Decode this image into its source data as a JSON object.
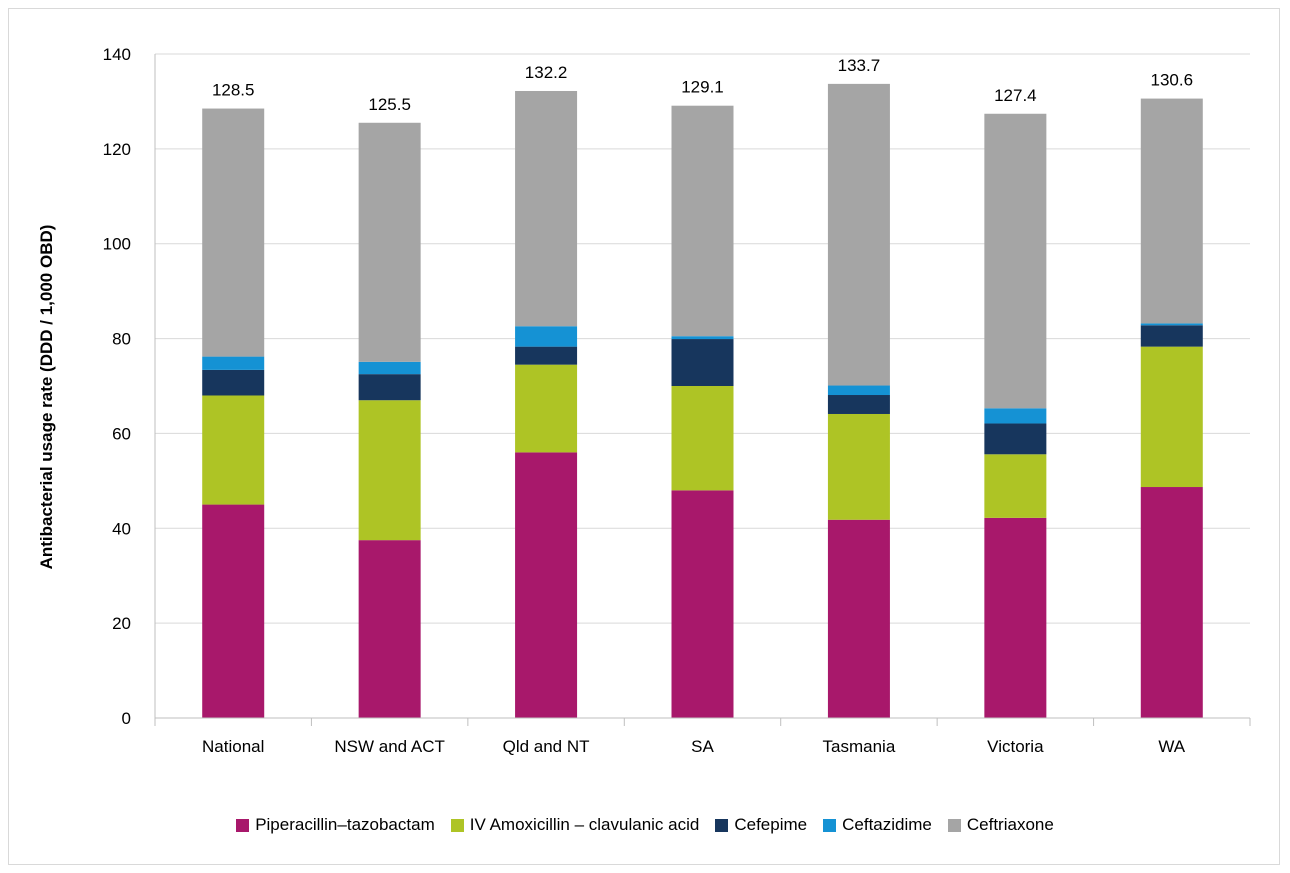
{
  "chart_data": {
    "type": "bar",
    "stacked": true,
    "ylabel": "Antibacterial usage rate (DDD / 1,000 OBD)",
    "xlabel": "",
    "ylim": [
      0,
      140
    ],
    "yticks": [
      0,
      20,
      40,
      60,
      80,
      100,
      120,
      140
    ],
    "grid": true,
    "legend_position": "bottom",
    "categories": [
      "National",
      "NSW and ACT",
      "Qld and NT",
      "SA",
      "Tasmania",
      "Victoria",
      "WA"
    ],
    "totals": [
      "128.5",
      "125.5",
      "132.2",
      "129.1",
      "133.7",
      "127.4",
      "130.6"
    ],
    "series": [
      {
        "name": "Piperacillin–tazobactam",
        "color": "#a8186b",
        "values": [
          45.0,
          37.5,
          56.0,
          48.0,
          41.8,
          42.2,
          48.7
        ]
      },
      {
        "name": "IV Amoxicillin – clavulanic acid",
        "color": "#aec425",
        "values": [
          23.0,
          29.5,
          18.5,
          22.0,
          22.3,
          13.4,
          29.6
        ]
      },
      {
        "name": "Cefepime",
        "color": "#17365d",
        "values": [
          5.4,
          5.5,
          3.8,
          9.9,
          4.0,
          6.5,
          4.5
        ]
      },
      {
        "name": "Ceftazidime",
        "color": "#1592d4",
        "values": [
          2.8,
          2.6,
          4.3,
          0.6,
          2.0,
          3.2,
          0.4
        ]
      },
      {
        "name": "Ceftriaxone",
        "color": "#a5a5a5",
        "values": [
          52.3,
          50.4,
          49.6,
          48.6,
          63.6,
          62.1,
          47.4
        ]
      }
    ]
  }
}
